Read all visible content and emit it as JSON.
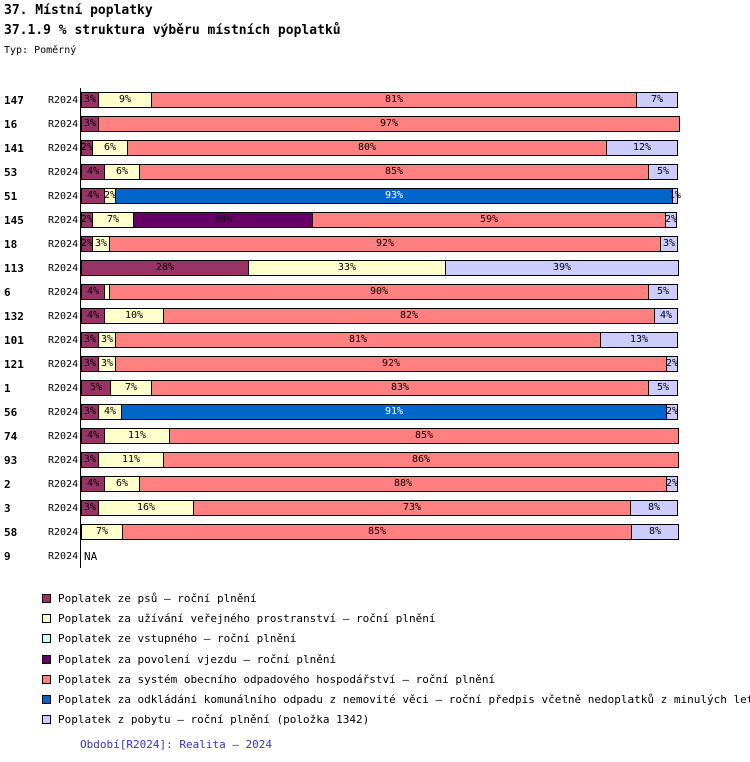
{
  "title": "37. Místní poplatky",
  "subtitle": "37.1.9 % struktura výběru místních poplatků",
  "type_label": "Typ: Poměrný",
  "footer": "Období[R2024]: Realita – 2024",
  "footer_color": "#3333CC",
  "chart_data": {
    "type": "bar",
    "orientation": "horizontal",
    "stacked": true,
    "unit": "%",
    "x_range": [
      0,
      100
    ],
    "period_label": "R2024",
    "na_label": "NA",
    "legend_position": "bottom",
    "series": [
      {
        "key": "dog",
        "label": "Poplatek ze psů – roční plnění",
        "color": "#993366"
      },
      {
        "key": "public_space",
        "label": "Poplatek za užívání veřejného prostranství – roční plnění",
        "color": "#FFFFCC"
      },
      {
        "key": "entry_fee",
        "label": "Poplatek ze vstupného – roční plnění",
        "color": "#CCFFFF"
      },
      {
        "key": "vehicle_entry",
        "label": "Poplatek za povolení vjezdu – roční plnění",
        "color": "#660066"
      },
      {
        "key": "waste_system",
        "label": "Poplatek za systém obecního odpadového hospodářství – roční plnění",
        "color": "#FF8080"
      },
      {
        "key": "waste_disposal",
        "label": "Poplatek za odkládání komunálního odpadu z nemovité věci – roční předpis včetně nedoplatků z minulých let",
        "color": "#0066CC"
      },
      {
        "key": "stay",
        "label": "Poplatek z pobytu – roční plnění (položka 1342)",
        "color": "#CCCCFF"
      }
    ],
    "rows": [
      {
        "id": "147",
        "segments": [
          {
            "series": "dog",
            "value": 3,
            "label": "3%"
          },
          {
            "series": "public_space",
            "value": 9,
            "label": "9%"
          },
          {
            "series": "waste_system",
            "value": 81,
            "label": "81%"
          },
          {
            "series": "stay",
            "value": 7,
            "label": "7%"
          }
        ]
      },
      {
        "id": "16",
        "segments": [
          {
            "series": "dog",
            "value": 3,
            "label": "3%"
          },
          {
            "series": "waste_system",
            "value": 97,
            "label": "97%"
          }
        ]
      },
      {
        "id": "141",
        "segments": [
          {
            "series": "dog",
            "value": 2,
            "label": "2%"
          },
          {
            "series": "public_space",
            "value": 6,
            "label": "6%"
          },
          {
            "series": "waste_system",
            "value": 80,
            "label": "80%"
          },
          {
            "series": "stay",
            "value": 12,
            "label": "12%"
          }
        ]
      },
      {
        "id": "53",
        "segments": [
          {
            "series": "dog",
            "value": 4,
            "label": "4%"
          },
          {
            "series": "public_space",
            "value": 6,
            "label": "6%"
          },
          {
            "series": "waste_system",
            "value": 85,
            "label": "85%"
          },
          {
            "series": "stay",
            "value": 5,
            "label": "5%"
          }
        ]
      },
      {
        "id": "51",
        "segments": [
          {
            "series": "dog",
            "value": 4,
            "label": "4%"
          },
          {
            "series": "public_space",
            "value": 2,
            "label": "2%"
          },
          {
            "series": "waste_disposal",
            "value": 93,
            "label": "93%"
          },
          {
            "series": "stay",
            "value": 1,
            "label": "1%"
          }
        ]
      },
      {
        "id": "145",
        "segments": [
          {
            "series": "dog",
            "value": 2,
            "label": "2%"
          },
          {
            "series": "public_space",
            "value": 7,
            "label": "7%"
          },
          {
            "series": "vehicle_entry",
            "value": 30,
            "label": "30%"
          },
          {
            "series": "waste_system",
            "value": 59,
            "label": "59%"
          },
          {
            "series": "stay",
            "value": 2,
            "label": "2%"
          }
        ]
      },
      {
        "id": "18",
        "segments": [
          {
            "series": "dog",
            "value": 2,
            "label": "2%"
          },
          {
            "series": "public_space",
            "value": 3,
            "label": "3%"
          },
          {
            "series": "waste_system",
            "value": 92,
            "label": "92%"
          },
          {
            "series": "stay",
            "value": 3,
            "label": "3%"
          }
        ]
      },
      {
        "id": "113",
        "segments": [
          {
            "series": "dog",
            "value": 28,
            "label": "28%"
          },
          {
            "series": "public_space",
            "value": 33,
            "label": "33%"
          },
          {
            "series": "stay",
            "value": 39,
            "label": "39%"
          }
        ]
      },
      {
        "id": "6",
        "segments": [
          {
            "series": "dog",
            "value": 4,
            "label": "4%"
          },
          {
            "series": "public_space",
            "value": 1,
            "label": ""
          },
          {
            "series": "waste_system",
            "value": 90,
            "label": "90%"
          },
          {
            "series": "stay",
            "value": 5,
            "label": "5%"
          }
        ]
      },
      {
        "id": "132",
        "segments": [
          {
            "series": "dog",
            "value": 4,
            "label": "4%"
          },
          {
            "series": "public_space",
            "value": 10,
            "label": "10%"
          },
          {
            "series": "waste_system",
            "value": 82,
            "label": "82%"
          },
          {
            "series": "stay",
            "value": 4,
            "label": "4%"
          }
        ]
      },
      {
        "id": "101",
        "segments": [
          {
            "series": "dog",
            "value": 3,
            "label": "3%"
          },
          {
            "series": "public_space",
            "value": 3,
            "label": "3%"
          },
          {
            "series": "waste_system",
            "value": 81,
            "label": "81%"
          },
          {
            "series": "stay",
            "value": 13,
            "label": "13%"
          }
        ]
      },
      {
        "id": "121",
        "segments": [
          {
            "series": "dog",
            "value": 3,
            "label": "3%"
          },
          {
            "series": "public_space",
            "value": 3,
            "label": "3%"
          },
          {
            "series": "waste_system",
            "value": 92,
            "label": "92%"
          },
          {
            "series": "stay",
            "value": 2,
            "label": "2%"
          }
        ]
      },
      {
        "id": "1",
        "segments": [
          {
            "series": "dog",
            "value": 5,
            "label": "5%"
          },
          {
            "series": "public_space",
            "value": 7,
            "label": "7%"
          },
          {
            "series": "waste_system",
            "value": 83,
            "label": "83%"
          },
          {
            "series": "stay",
            "value": 5,
            "label": "5%"
          }
        ]
      },
      {
        "id": "56",
        "segments": [
          {
            "series": "dog",
            "value": 3,
            "label": "3%"
          },
          {
            "series": "public_space",
            "value": 4,
            "label": "4%"
          },
          {
            "series": "waste_disposal",
            "value": 91,
            "label": "91%"
          },
          {
            "series": "stay",
            "value": 2,
            "label": "2%"
          }
        ]
      },
      {
        "id": "74",
        "segments": [
          {
            "series": "dog",
            "value": 4,
            "label": "4%"
          },
          {
            "series": "public_space",
            "value": 11,
            "label": "11%"
          },
          {
            "series": "waste_system",
            "value": 85,
            "label": "85%"
          }
        ]
      },
      {
        "id": "93",
        "segments": [
          {
            "series": "dog",
            "value": 3,
            "label": "3%"
          },
          {
            "series": "public_space",
            "value": 11,
            "label": "11%"
          },
          {
            "series": "waste_system",
            "value": 86,
            "label": "86%"
          }
        ]
      },
      {
        "id": "2",
        "segments": [
          {
            "series": "dog",
            "value": 4,
            "label": "4%"
          },
          {
            "series": "public_space",
            "value": 6,
            "label": "6%"
          },
          {
            "series": "waste_system",
            "value": 88,
            "label": "88%"
          },
          {
            "series": "stay",
            "value": 2,
            "label": "2%"
          }
        ]
      },
      {
        "id": "3",
        "segments": [
          {
            "series": "dog",
            "value": 3,
            "label": "3%"
          },
          {
            "series": "public_space",
            "value": 16,
            "label": "16%"
          },
          {
            "series": "waste_system",
            "value": 73,
            "label": "73%"
          },
          {
            "series": "stay",
            "value": 8,
            "label": "8%"
          }
        ]
      },
      {
        "id": "58",
        "segments": [
          {
            "series": "public_space",
            "value": 7,
            "label": "7%"
          },
          {
            "series": "waste_system",
            "value": 85,
            "label": "85%"
          },
          {
            "series": "stay",
            "value": 8,
            "label": "8%"
          }
        ]
      },
      {
        "id": "9",
        "na": true,
        "segments": []
      }
    ]
  }
}
